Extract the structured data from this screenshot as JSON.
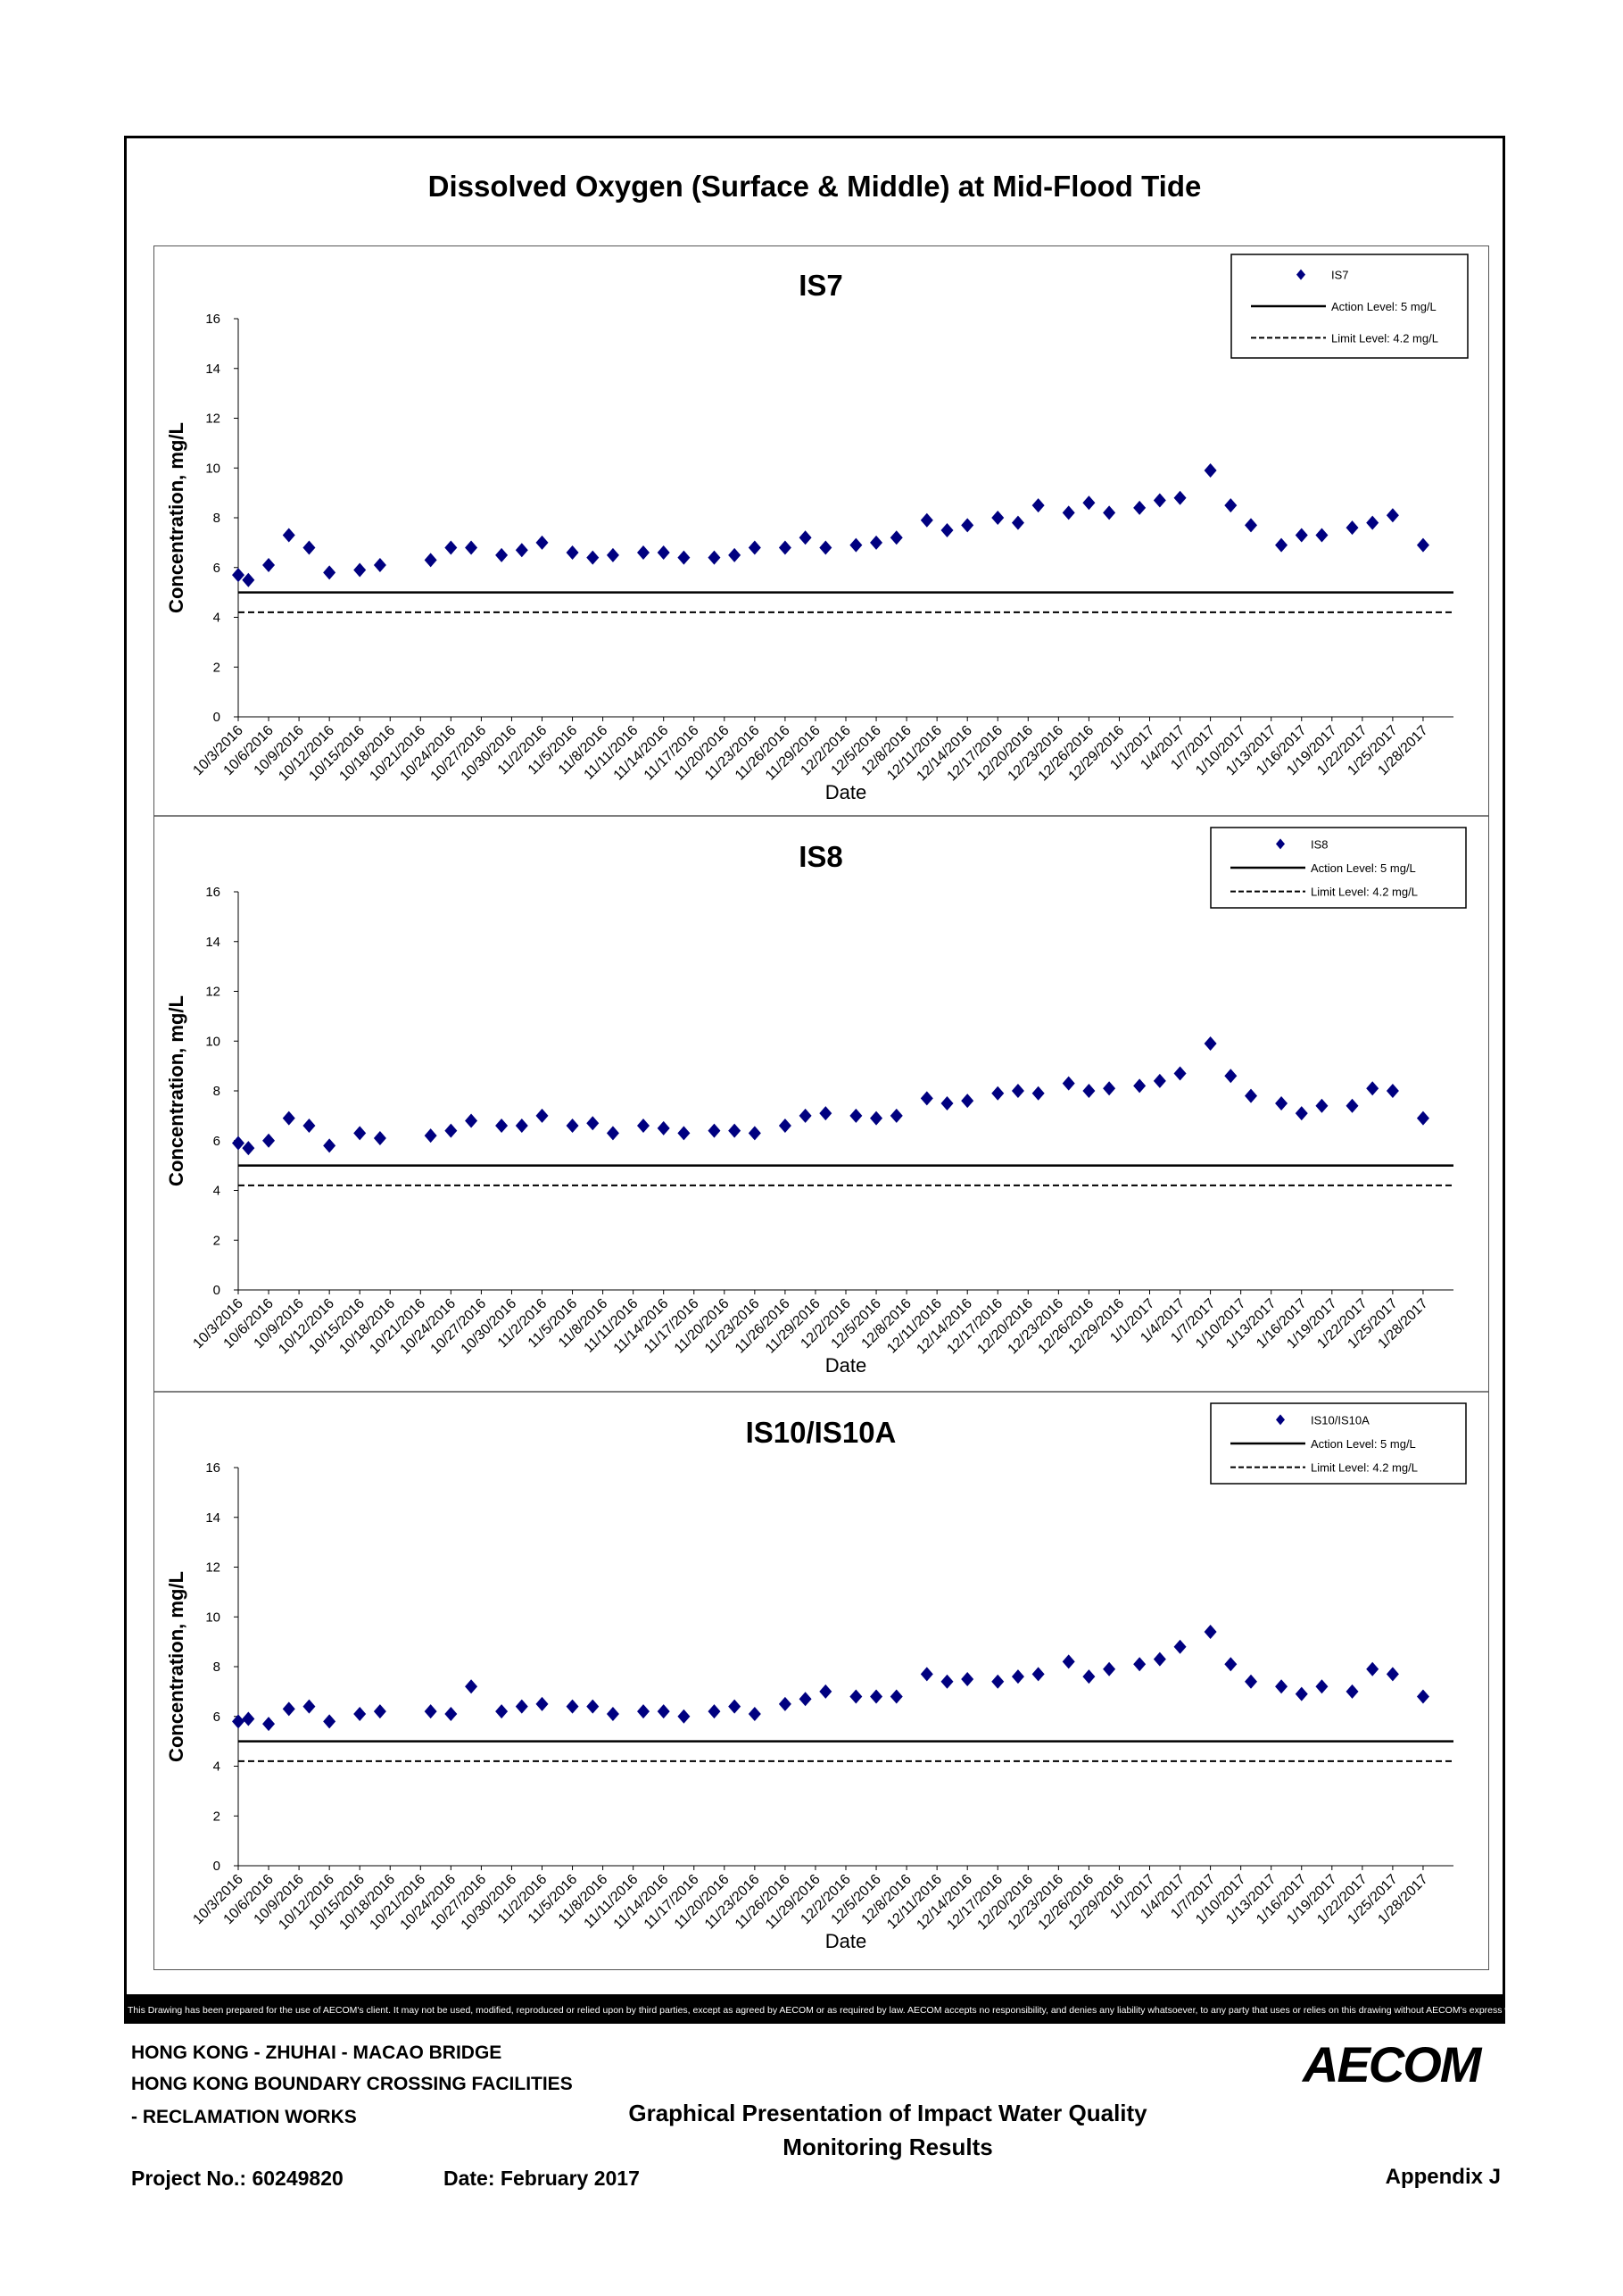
{
  "title": "Dissolved Oxygen (Surface & Middle) at Mid-Flood Tide",
  "footer": {
    "disclaimer": "This Drawing has been prepared for the use of AECOM's client. It may not be used, modified, reproduced or relied upon by third parties, except as agreed by AECOM or as required by law. AECOM accepts no responsibility, and denies any liability whatsoever, to any party that uses or relies on this drawing without AECOM's express written consent.",
    "line1": "HONG KONG - ZHUHAI - MACAO BRIDGE",
    "line2": "HONG KONG BOUNDARY CROSSING FACILITIES",
    "line3": "- RECLAMATION WORKS",
    "center_line1": "Graphical Presentation of Impact Water Quality",
    "center_line2": "Monitoring Results",
    "project_no": "Project No.: 60249820",
    "date": "Date: February 2017",
    "appendix": "Appendix J",
    "logo_text": "AECOM"
  },
  "colors": {
    "marker": "#000080",
    "line": "#000000"
  },
  "chart_data": [
    {
      "type": "scatter",
      "title": "IS7",
      "xlabel": "Date",
      "ylabel": "Concentration, mg/L",
      "ylim": [
        0,
        16
      ],
      "yticks": [
        0,
        2,
        4,
        6,
        8,
        10,
        12,
        14,
        16
      ],
      "x_tick_labels": [
        "10/3/2016",
        "10/6/2016",
        "10/9/2016",
        "10/12/2016",
        "10/15/2016",
        "10/18/2016",
        "10/21/2016",
        "10/24/2016",
        "10/27/2016",
        "10/30/2016",
        "11/2/2016",
        "11/5/2016",
        "11/8/2016",
        "11/11/2016",
        "11/14/2016",
        "11/17/2016",
        "11/20/2016",
        "11/23/2016",
        "11/26/2016",
        "11/29/2016",
        "12/2/2016",
        "12/5/2016",
        "12/8/2016",
        "12/11/2016",
        "12/14/2016",
        "12/17/2016",
        "12/20/2016",
        "12/23/2016",
        "12/26/2016",
        "12/29/2016",
        "1/1/2017",
        "1/4/2017",
        "1/7/2017",
        "1/10/2017",
        "1/13/2017",
        "1/16/2017",
        "1/19/2017",
        "1/22/2017",
        "1/25/2017",
        "1/28/2017"
      ],
      "legend": {
        "position": "top-right",
        "entries": [
          "IS7",
          "Action Level: 5 mg/L",
          "Limit Level: 4.2 mg/L"
        ]
      },
      "action_level": 5,
      "limit_level": 4.2,
      "series": [
        {
          "name": "IS7",
          "points": [
            [
              "10/3/2016",
              5.7
            ],
            [
              "10/4/2016",
              5.5
            ],
            [
              "10/6/2016",
              6.1
            ],
            [
              "10/8/2016",
              7.3
            ],
            [
              "10/10/2016",
              6.8
            ],
            [
              "10/12/2016",
              5.8
            ],
            [
              "10/15/2016",
              5.9
            ],
            [
              "10/17/2016",
              6.1
            ],
            [
              "10/22/2016",
              6.3
            ],
            [
              "10/24/2016",
              6.8
            ],
            [
              "10/26/2016",
              6.8
            ],
            [
              "10/29/2016",
              6.5
            ],
            [
              "10/31/2016",
              6.7
            ],
            [
              "11/2/2016",
              7.0
            ],
            [
              "11/5/2016",
              6.6
            ],
            [
              "11/7/2016",
              6.4
            ],
            [
              "11/9/2016",
              6.5
            ],
            [
              "11/12/2016",
              6.6
            ],
            [
              "11/14/2016",
              6.6
            ],
            [
              "11/16/2016",
              6.4
            ],
            [
              "11/19/2016",
              6.4
            ],
            [
              "11/21/2016",
              6.5
            ],
            [
              "11/23/2016",
              6.8
            ],
            [
              "11/26/2016",
              6.8
            ],
            [
              "11/28/2016",
              7.2
            ],
            [
              "11/30/2016",
              6.8
            ],
            [
              "12/3/2016",
              6.9
            ],
            [
              "12/5/2016",
              7.0
            ],
            [
              "12/7/2016",
              7.2
            ],
            [
              "12/10/2016",
              7.9
            ],
            [
              "12/12/2016",
              7.5
            ],
            [
              "12/14/2016",
              7.7
            ],
            [
              "12/17/2016",
              8.0
            ],
            [
              "12/19/2016",
              7.8
            ],
            [
              "12/21/2016",
              8.5
            ],
            [
              "12/24/2016",
              8.2
            ],
            [
              "12/26/2016",
              8.6
            ],
            [
              "12/28/2016",
              8.2
            ],
            [
              "12/31/2016",
              8.4
            ],
            [
              "1/2/2017",
              8.7
            ],
            [
              "1/4/2017",
              8.8
            ],
            [
              "1/7/2017",
              9.9
            ],
            [
              "1/9/2017",
              8.5
            ],
            [
              "1/11/2017",
              7.7
            ],
            [
              "1/14/2017",
              6.9
            ],
            [
              "1/16/2017",
              7.3
            ],
            [
              "1/18/2017",
              7.3
            ],
            [
              "1/21/2017",
              7.6
            ],
            [
              "1/23/2017",
              7.8
            ],
            [
              "1/25/2017",
              8.1
            ],
            [
              "1/28/2017",
              6.9
            ]
          ]
        }
      ]
    },
    {
      "type": "scatter",
      "title": "IS8",
      "xlabel": "Date",
      "ylabel": "Concentration, mg/L",
      "ylim": [
        0,
        16
      ],
      "yticks": [
        0,
        2,
        4,
        6,
        8,
        10,
        12,
        14,
        16
      ],
      "x_tick_labels": [
        "10/3/2016",
        "10/6/2016",
        "10/9/2016",
        "10/12/2016",
        "10/15/2016",
        "10/18/2016",
        "10/21/2016",
        "10/24/2016",
        "10/27/2016",
        "10/30/2016",
        "11/2/2016",
        "11/5/2016",
        "11/8/2016",
        "11/11/2016",
        "11/14/2016",
        "11/17/2016",
        "11/20/2016",
        "11/23/2016",
        "11/26/2016",
        "11/29/2016",
        "12/2/2016",
        "12/5/2016",
        "12/8/2016",
        "12/11/2016",
        "12/14/2016",
        "12/17/2016",
        "12/20/2016",
        "12/23/2016",
        "12/26/2016",
        "12/29/2016",
        "1/1/2017",
        "1/4/2017",
        "1/7/2017",
        "1/10/2017",
        "1/13/2017",
        "1/16/2017",
        "1/19/2017",
        "1/22/2017",
        "1/25/2017",
        "1/28/2017"
      ],
      "legend": {
        "position": "top-right",
        "entries": [
          "IS8",
          "Action Level: 5 mg/L",
          "Limit Level: 4.2 mg/L"
        ]
      },
      "action_level": 5,
      "limit_level": 4.2,
      "series": [
        {
          "name": "IS8",
          "points": [
            [
              "10/3/2016",
              5.9
            ],
            [
              "10/4/2016",
              5.7
            ],
            [
              "10/6/2016",
              6.0
            ],
            [
              "10/8/2016",
              6.9
            ],
            [
              "10/10/2016",
              6.6
            ],
            [
              "10/12/2016",
              5.8
            ],
            [
              "10/15/2016",
              6.3
            ],
            [
              "10/17/2016",
              6.1
            ],
            [
              "10/22/2016",
              6.2
            ],
            [
              "10/24/2016",
              6.4
            ],
            [
              "10/26/2016",
              6.8
            ],
            [
              "10/29/2016",
              6.6
            ],
            [
              "10/31/2016",
              6.6
            ],
            [
              "11/2/2016",
              7.0
            ],
            [
              "11/5/2016",
              6.6
            ],
            [
              "11/7/2016",
              6.7
            ],
            [
              "11/9/2016",
              6.3
            ],
            [
              "11/12/2016",
              6.6
            ],
            [
              "11/14/2016",
              6.5
            ],
            [
              "11/16/2016",
              6.3
            ],
            [
              "11/19/2016",
              6.4
            ],
            [
              "11/21/2016",
              6.4
            ],
            [
              "11/23/2016",
              6.3
            ],
            [
              "11/26/2016",
              6.6
            ],
            [
              "11/28/2016",
              7.0
            ],
            [
              "11/30/2016",
              7.1
            ],
            [
              "12/3/2016",
              7.0
            ],
            [
              "12/5/2016",
              6.9
            ],
            [
              "12/7/2016",
              7.0
            ],
            [
              "12/10/2016",
              7.7
            ],
            [
              "12/12/2016",
              7.5
            ],
            [
              "12/14/2016",
              7.6
            ],
            [
              "12/17/2016",
              7.9
            ],
            [
              "12/19/2016",
              8.0
            ],
            [
              "12/21/2016",
              7.9
            ],
            [
              "12/24/2016",
              8.3
            ],
            [
              "12/26/2016",
              8.0
            ],
            [
              "12/28/2016",
              8.1
            ],
            [
              "12/31/2016",
              8.2
            ],
            [
              "1/2/2017",
              8.4
            ],
            [
              "1/4/2017",
              8.7
            ],
            [
              "1/7/2017",
              9.9
            ],
            [
              "1/9/2017",
              8.6
            ],
            [
              "1/11/2017",
              7.8
            ],
            [
              "1/14/2017",
              7.5
            ],
            [
              "1/16/2017",
              7.1
            ],
            [
              "1/18/2017",
              7.4
            ],
            [
              "1/21/2017",
              7.4
            ],
            [
              "1/23/2017",
              8.1
            ],
            [
              "1/25/2017",
              8.0
            ],
            [
              "1/28/2017",
              6.9
            ]
          ]
        }
      ]
    },
    {
      "type": "scatter",
      "title": "IS10/IS10A",
      "xlabel": "Date",
      "ylabel": "Concentration, mg/L",
      "ylim": [
        0,
        16
      ],
      "yticks": [
        0,
        2,
        4,
        6,
        8,
        10,
        12,
        14,
        16
      ],
      "x_tick_labels": [
        "10/3/2016",
        "10/6/2016",
        "10/9/2016",
        "10/12/2016",
        "10/15/2016",
        "10/18/2016",
        "10/21/2016",
        "10/24/2016",
        "10/27/2016",
        "10/30/2016",
        "11/2/2016",
        "11/5/2016",
        "11/8/2016",
        "11/11/2016",
        "11/14/2016",
        "11/17/2016",
        "11/20/2016",
        "11/23/2016",
        "11/26/2016",
        "11/29/2016",
        "12/2/2016",
        "12/5/2016",
        "12/8/2016",
        "12/11/2016",
        "12/14/2016",
        "12/17/2016",
        "12/20/2016",
        "12/23/2016",
        "12/26/2016",
        "12/29/2016",
        "1/1/2017",
        "1/4/2017",
        "1/7/2017",
        "1/10/2017",
        "1/13/2017",
        "1/16/2017",
        "1/19/2017",
        "1/22/2017",
        "1/25/2017",
        "1/28/2017"
      ],
      "legend": {
        "position": "top-right",
        "entries": [
          "IS10/IS10A",
          "Action Level: 5 mg/L",
          "Limit Level: 4.2 mg/L"
        ]
      },
      "action_level": 5,
      "limit_level": 4.2,
      "series": [
        {
          "name": "IS10/IS10A",
          "points": [
            [
              "10/3/2016",
              5.8
            ],
            [
              "10/4/2016",
              5.9
            ],
            [
              "10/6/2016",
              5.7
            ],
            [
              "10/8/2016",
              6.3
            ],
            [
              "10/10/2016",
              6.4
            ],
            [
              "10/12/2016",
              5.8
            ],
            [
              "10/15/2016",
              6.1
            ],
            [
              "10/17/2016",
              6.2
            ],
            [
              "10/22/2016",
              6.2
            ],
            [
              "10/24/2016",
              6.1
            ],
            [
              "10/26/2016",
              7.2
            ],
            [
              "10/29/2016",
              6.2
            ],
            [
              "10/31/2016",
              6.4
            ],
            [
              "11/2/2016",
              6.5
            ],
            [
              "11/5/2016",
              6.4
            ],
            [
              "11/7/2016",
              6.4
            ],
            [
              "11/9/2016",
              6.1
            ],
            [
              "11/12/2016",
              6.2
            ],
            [
              "11/14/2016",
              6.2
            ],
            [
              "11/16/2016",
              6.0
            ],
            [
              "11/19/2016",
              6.2
            ],
            [
              "11/21/2016",
              6.4
            ],
            [
              "11/23/2016",
              6.1
            ],
            [
              "11/26/2016",
              6.5
            ],
            [
              "11/28/2016",
              6.7
            ],
            [
              "11/30/2016",
              7.0
            ],
            [
              "12/3/2016",
              6.8
            ],
            [
              "12/5/2016",
              6.8
            ],
            [
              "12/7/2016",
              6.8
            ],
            [
              "12/10/2016",
              7.7
            ],
            [
              "12/12/2016",
              7.4
            ],
            [
              "12/14/2016",
              7.5
            ],
            [
              "12/17/2016",
              7.4
            ],
            [
              "12/19/2016",
              7.6
            ],
            [
              "12/21/2016",
              7.7
            ],
            [
              "12/24/2016",
              8.2
            ],
            [
              "12/26/2016",
              7.6
            ],
            [
              "12/28/2016",
              7.9
            ],
            [
              "12/31/2016",
              8.1
            ],
            [
              "1/2/2017",
              8.3
            ],
            [
              "1/4/2017",
              8.8
            ],
            [
              "1/7/2017",
              9.4
            ],
            [
              "1/9/2017",
              8.1
            ],
            [
              "1/11/2017",
              7.4
            ],
            [
              "1/14/2017",
              7.2
            ],
            [
              "1/16/2017",
              6.9
            ],
            [
              "1/18/2017",
              7.2
            ],
            [
              "1/21/2017",
              7.0
            ],
            [
              "1/23/2017",
              7.9
            ],
            [
              "1/25/2017",
              7.7
            ],
            [
              "1/28/2017",
              6.8
            ]
          ]
        }
      ]
    }
  ]
}
